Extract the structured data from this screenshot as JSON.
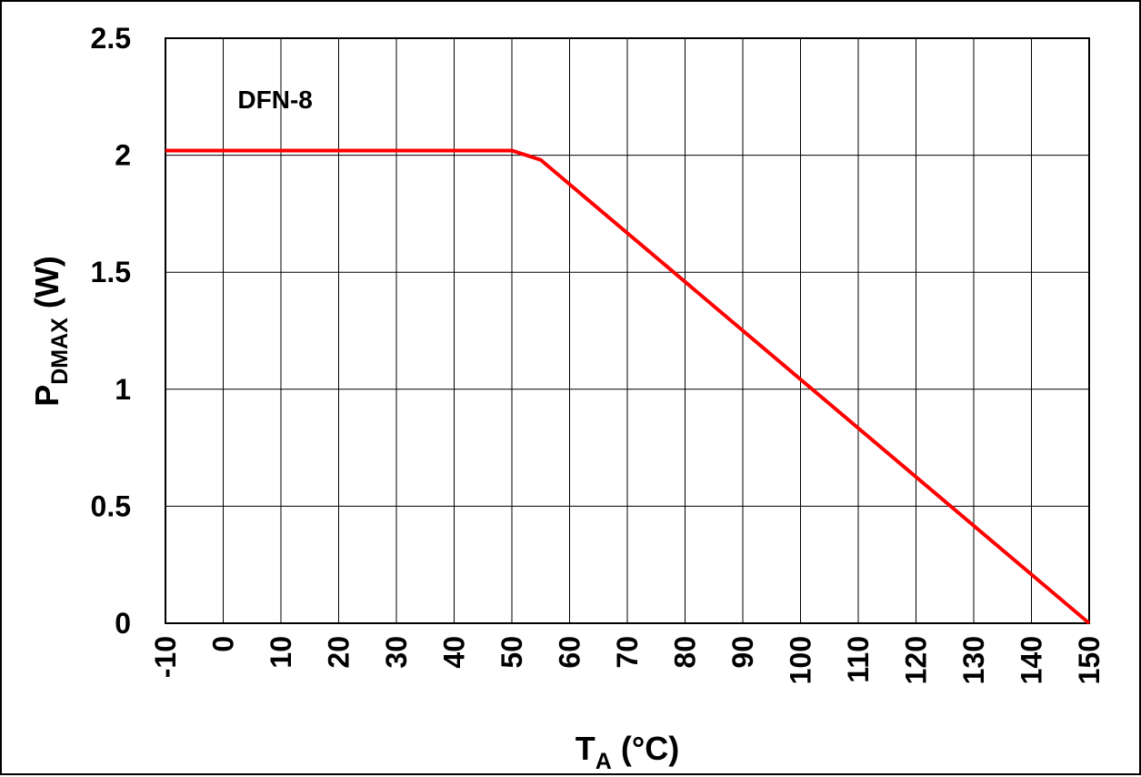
{
  "chart_data": {
    "type": "line",
    "title": "",
    "xlabel": {
      "main": "T",
      "sub": "A",
      "unit": " (°C)"
    },
    "ylabel": {
      "main": "P",
      "sub": "DMAX",
      "unit": " (W)"
    },
    "xlim": [
      -10,
      150
    ],
    "ylim": [
      0,
      2.5
    ],
    "x_ticks": [
      -10,
      0,
      10,
      20,
      30,
      40,
      50,
      60,
      70,
      80,
      90,
      100,
      110,
      120,
      130,
      140,
      150
    ],
    "x_tick_labels": [
      "-10",
      "0",
      "10",
      "20",
      "30",
      "40",
      "50",
      "60",
      "70",
      "80",
      "90",
      "100",
      "110",
      "120",
      "130",
      "140",
      "150"
    ],
    "y_ticks": [
      0,
      0.5,
      1,
      1.5,
      2,
      2.5
    ],
    "y_tick_labels": [
      "0",
      "0.5",
      "1",
      "1.5",
      "2",
      "2.5"
    ],
    "grid": true,
    "series": [
      {
        "name": "DFN-8",
        "color": "#ff0000",
        "x": [
          -10,
          50,
          55,
          150
        ],
        "y": [
          2.02,
          2.02,
          1.98,
          0
        ]
      }
    ],
    "annotations": [
      {
        "text": "DFN-8",
        "x": 9,
        "y": 2.2
      }
    ]
  }
}
